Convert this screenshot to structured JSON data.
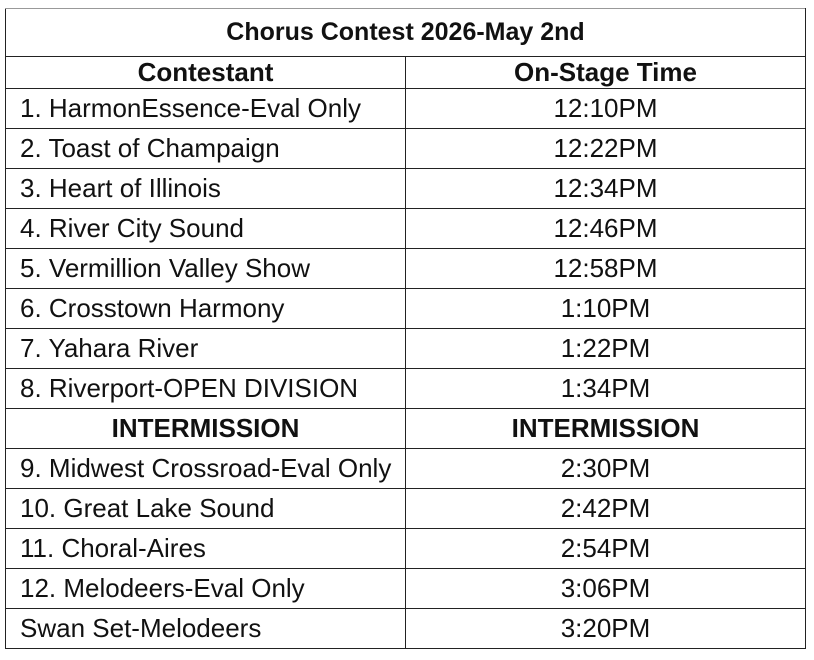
{
  "title": "Chorus Contest 2026-May 2nd",
  "headers": {
    "contestant": "Contestant",
    "time": "On-Stage Time"
  },
  "rows": [
    {
      "contestant": "1. HarmonEssence-Eval Only",
      "time": "12:10PM"
    },
    {
      "contestant": "2. Toast of Champaign",
      "time": "12:22PM"
    },
    {
      "contestant": "3. Heart of Illinois",
      "time": "12:34PM"
    },
    {
      "contestant": "4. River City Sound",
      "time": "12:46PM"
    },
    {
      "contestant": "5. Vermillion Valley Show",
      "time": "12:58PM"
    },
    {
      "contestant": "6. Crosstown Harmony",
      "time": "1:10PM"
    },
    {
      "contestant": "7. Yahara River",
      "time": "1:22PM"
    },
    {
      "contestant": "8. Riverport-OPEN DIVISION",
      "time": "1:34PM"
    },
    {
      "contestant": "INTERMISSION",
      "time": "INTERMISSION",
      "intermission": true
    },
    {
      "contestant": "9. Midwest Crossroad-Eval Only",
      "time": "2:30PM"
    },
    {
      "contestant": "10. Great Lake Sound",
      "time": "2:42PM"
    },
    {
      "contestant": "11. Choral-Aires",
      "time": "2:54PM"
    },
    {
      "contestant": "12. Melodeers-Eval Only",
      "time": "3:06PM"
    },
    {
      "contestant": "Swan Set-Melodeers",
      "time": "3:20PM"
    }
  ]
}
